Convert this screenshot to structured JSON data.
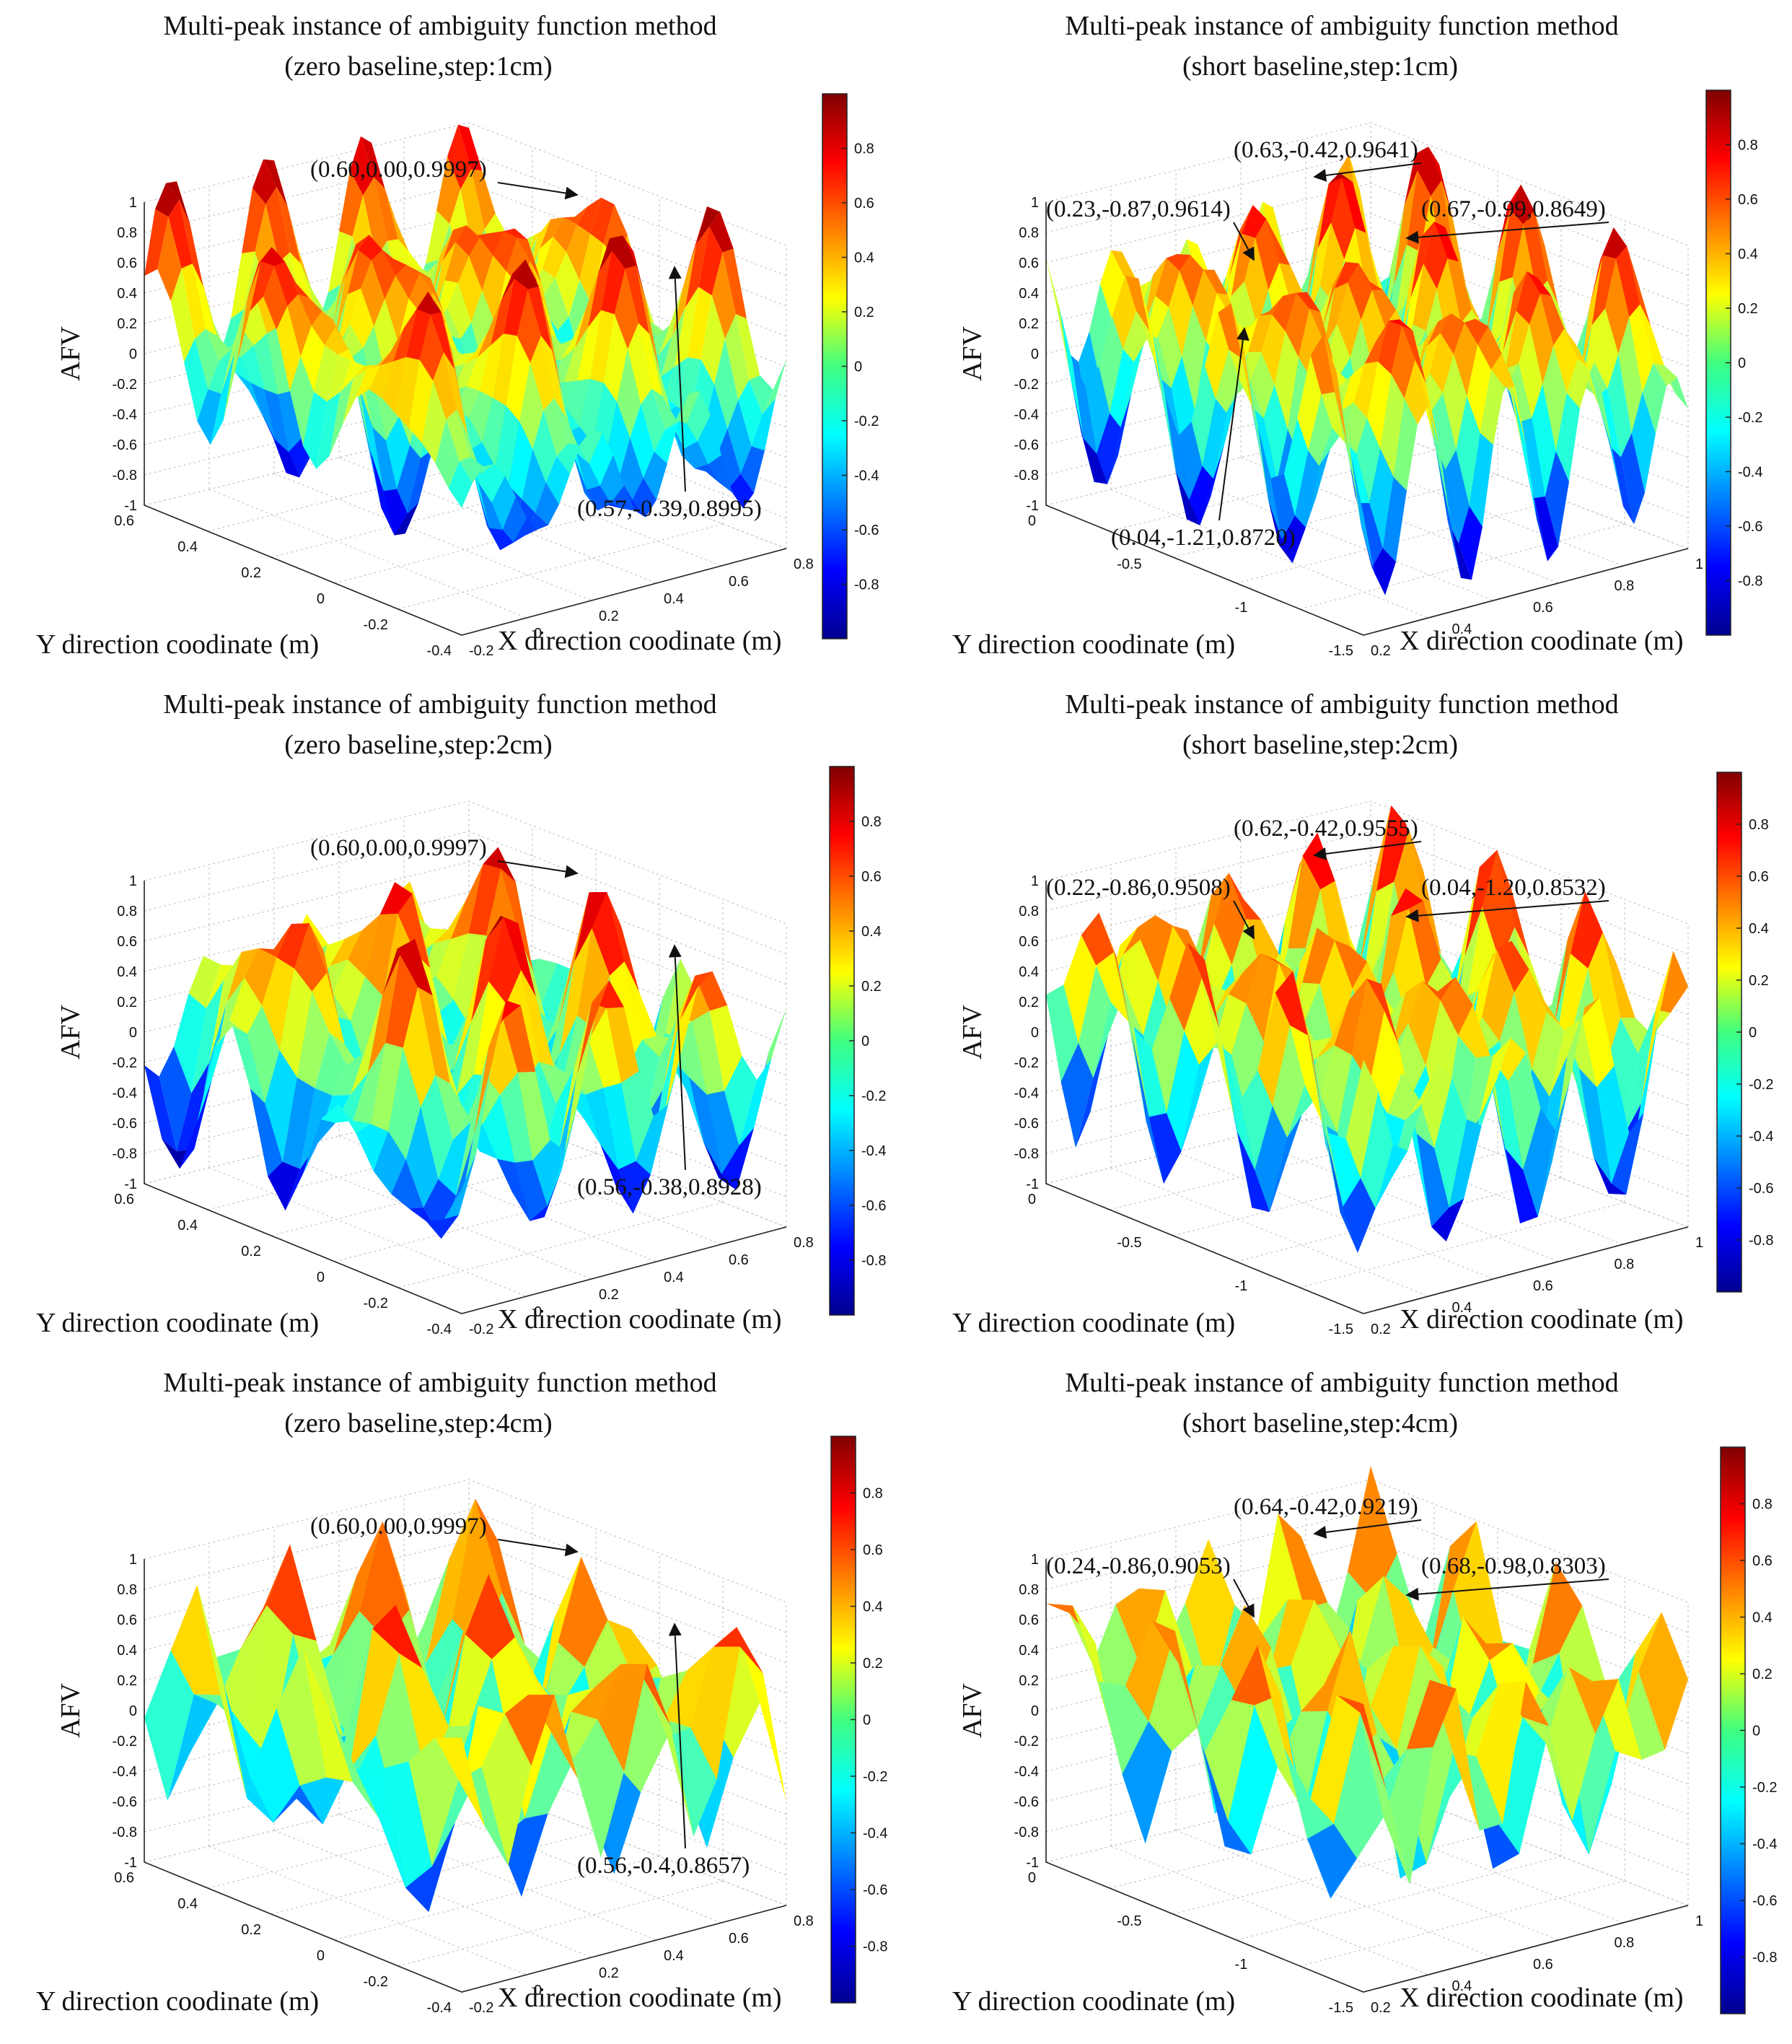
{
  "chart_data": [
    {
      "type": "surface3d",
      "title": [
        "Multi-peak instance of ambiguity function method",
        "(zero baseline,step:1cm)"
      ],
      "xlabel": "X direction coodinate (m)",
      "ylabel": "Y direction coodinate (m)",
      "zlabel": "AFV",
      "x_ticks": [
        "-0.2",
        "0",
        "0.2",
        "0.4",
        "0.6",
        "0.8"
      ],
      "y_ticks": [
        "-0.4",
        "-0.2",
        "0",
        "0.2",
        "0.4",
        "0.6"
      ],
      "z_ticks": [
        "-1",
        "-0.8",
        "-0.6",
        "-0.4",
        "-0.2",
        "0",
        "0.2",
        "0.4",
        "0.6",
        "0.8",
        "1"
      ],
      "zlim": [
        -1,
        1
      ],
      "colorbar_ticks": [
        "-0.8",
        "-0.6",
        "-0.4",
        "-0.2",
        "0",
        "0.2",
        "0.4",
        "0.6",
        "0.8"
      ],
      "colorbar_range": [
        -1,
        1
      ],
      "annotations": [
        {
          "label": "(0.60,0.00,0.9997)",
          "x": 0.6,
          "y": 0.0,
          "z": 0.9997
        },
        {
          "label": "(0.57,-0.39,0.8995)",
          "x": 0.57,
          "y": -0.39,
          "z": 0.8995
        }
      ]
    },
    {
      "type": "surface3d",
      "title": [
        "Multi-peak instance of ambiguity function method",
        "(short baseline,step:1cm)"
      ],
      "xlabel": "X direction coodinate (m)",
      "ylabel": "Y direction coodinate (m)",
      "zlabel": "AFV",
      "x_ticks": [
        "0.2",
        "0.4",
        "0.6",
        "0.8",
        "1"
      ],
      "y_ticks": [
        "-1.5",
        "-1",
        "-0.5",
        "0"
      ],
      "z_ticks": [
        "-1",
        "-0.8",
        "-0.6",
        "-0.4",
        "-0.2",
        "0",
        "0.2",
        "0.4",
        "0.6",
        "0.8",
        "1"
      ],
      "zlim": [
        -1,
        1
      ],
      "colorbar_ticks": [
        "-0.8",
        "-0.6",
        "-0.4",
        "-0.2",
        "0",
        "0.2",
        "0.4",
        "0.6",
        "0.8"
      ],
      "colorbar_range": [
        -1,
        1
      ],
      "annotations": [
        {
          "label": "(0.63,-0.42,0.9641)",
          "x": 0.63,
          "y": -0.42,
          "z": 0.9641
        },
        {
          "label": "(0.23,-0.87,0.9614)",
          "x": 0.23,
          "y": -0.87,
          "z": 0.9614
        },
        {
          "label": "(0.67,-0.99,0.8649)",
          "x": 0.67,
          "y": -0.99,
          "z": 0.8649
        },
        {
          "label": "(0.04,-1.21,0.8720)",
          "x": 0.04,
          "y": -1.21,
          "z": 0.872
        }
      ]
    },
    {
      "type": "surface3d",
      "title": [
        "Multi-peak instance of ambiguity function method",
        "(zero baseline,step:2cm)"
      ],
      "xlabel": "X direction coodinate (m)",
      "ylabel": "Y direction coodinate (m)",
      "zlabel": "AFV",
      "x_ticks": [
        "-0.2",
        "0",
        "0.2",
        "0.4",
        "0.6",
        "0.8"
      ],
      "y_ticks": [
        "-0.4",
        "-0.2",
        "0",
        "0.2",
        "0.4",
        "0.6"
      ],
      "z_ticks": [
        "-1",
        "-0.8",
        "-0.6",
        "-0.4",
        "-0.2",
        "0",
        "0.2",
        "0.4",
        "0.6",
        "0.8",
        "1"
      ],
      "zlim": [
        -1,
        1
      ],
      "colorbar_ticks": [
        "-0.8",
        "-0.6",
        "-0.4",
        "-0.2",
        "0",
        "0.2",
        "0.4",
        "0.6",
        "0.8"
      ],
      "colorbar_range": [
        -1,
        1
      ],
      "annotations": [
        {
          "label": "(0.60,0.00,0.9997)",
          "x": 0.6,
          "y": 0.0,
          "z": 0.9997
        },
        {
          "label": "(0.56,-0.38,0.8928)",
          "x": 0.56,
          "y": -0.38,
          "z": 0.8928
        }
      ]
    },
    {
      "type": "surface3d",
      "title": [
        "Multi-peak instance of ambiguity function method",
        "(short baseline,step:2cm)"
      ],
      "xlabel": "X direction coodinate (m)",
      "ylabel": "Y direction coodinate (m)",
      "zlabel": "AFV",
      "x_ticks": [
        "0.2",
        "0.4",
        "0.6",
        "0.8",
        "1"
      ],
      "y_ticks": [
        "-1.5",
        "-1",
        "-0.5",
        "0"
      ],
      "z_ticks": [
        "-1",
        "-0.8",
        "-0.6",
        "-0.4",
        "-0.2",
        "0",
        "0.2",
        "0.4",
        "0.6",
        "0.8",
        "1"
      ],
      "zlim": [
        -1,
        1
      ],
      "colorbar_ticks": [
        "-0.8",
        "-0.6",
        "-0.4",
        "-0.2",
        "0",
        "0.2",
        "0.4",
        "0.6",
        "0.8"
      ],
      "colorbar_range": [
        -1,
        1
      ],
      "annotations": [
        {
          "label": "(0.62,-0.42,0.9555)",
          "x": 0.62,
          "y": -0.42,
          "z": 0.9555
        },
        {
          "label": "(0.22,-0.86,0.9508)",
          "x": 0.22,
          "y": -0.86,
          "z": 0.9508
        },
        {
          "label": "(0.04,-1.20,0.8532)",
          "x": 0.04,
          "y": -1.2,
          "z": 0.8532
        }
      ]
    },
    {
      "type": "surface3d",
      "title": [
        "Multi-peak instance of ambiguity function method",
        "(zero baseline,step:4cm)"
      ],
      "xlabel": "X direction coodinate (m)",
      "ylabel": "Y direction coodinate (m)",
      "zlabel": "AFV",
      "x_ticks": [
        "-0.2",
        "0",
        "0.2",
        "0.4",
        "0.6",
        "0.8"
      ],
      "y_ticks": [
        "-0.4",
        "-0.2",
        "0",
        "0.2",
        "0.4",
        "0.6"
      ],
      "z_ticks": [
        "-1",
        "-0.8",
        "-0.6",
        "-0.4",
        "-0.2",
        "0",
        "0.2",
        "0.4",
        "0.6",
        "0.8",
        "1"
      ],
      "zlim": [
        -1,
        1
      ],
      "colorbar_ticks": [
        "-0.8",
        "-0.6",
        "-0.4",
        "-0.2",
        "0",
        "0.2",
        "0.4",
        "0.6",
        "0.8"
      ],
      "colorbar_range": [
        -1,
        1
      ],
      "annotations": [
        {
          "label": "(0.60,0.00,0.9997)",
          "x": 0.6,
          "y": 0.0,
          "z": 0.9997
        },
        {
          "label": "(0.56,-0.4,0.8657)",
          "x": 0.56,
          "y": -0.4,
          "z": 0.8657
        }
      ]
    },
    {
      "type": "surface3d",
      "title": [
        "Multi-peak instance of ambiguity function method",
        "(short baseline,step:4cm)"
      ],
      "xlabel": "X direction coodinate (m)",
      "ylabel": "Y direction coodinate (m)",
      "zlabel": "AFV",
      "x_ticks": [
        "0.2",
        "0.4",
        "0.6",
        "0.8",
        "1"
      ],
      "y_ticks": [
        "-1.5",
        "-1",
        "-0.5",
        "0"
      ],
      "z_ticks": [
        "-1",
        "-0.8",
        "-0.6",
        "-0.4",
        "-0.2",
        "0",
        "0.2",
        "0.4",
        "0.6",
        "0.8",
        "1"
      ],
      "zlim": [
        -1,
        1
      ],
      "colorbar_ticks": [
        "-0.8",
        "-0.6",
        "-0.4",
        "-0.2",
        "0",
        "0.2",
        "0.4",
        "0.6",
        "0.8"
      ],
      "colorbar_range": [
        -1,
        1
      ],
      "annotations": [
        {
          "label": "(0.64,-0.42,0.9219)",
          "x": 0.64,
          "y": -0.42,
          "z": 0.9219
        },
        {
          "label": "(0.24,-0.86,0.9053)",
          "x": 0.24,
          "y": -0.86,
          "z": 0.9053
        },
        {
          "label": "(0.68,-0.98,0.8303)",
          "x": 0.68,
          "y": -0.98,
          "z": 0.8303
        }
      ]
    }
  ]
}
